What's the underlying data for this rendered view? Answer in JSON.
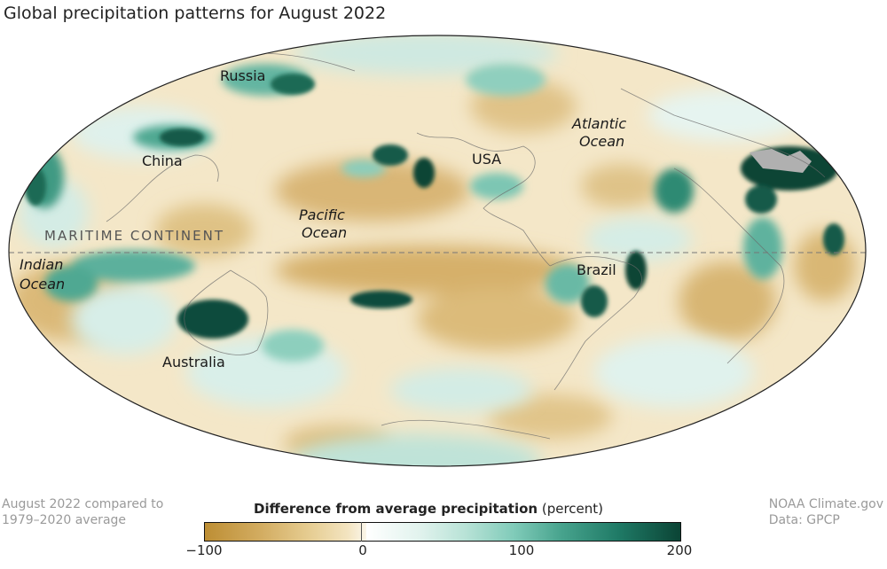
{
  "title": "Global precipitation patterns for August 2022",
  "map_labels": {
    "russia": "Russia",
    "china": "China",
    "maritime_continent": "MARITIME CONTINENT",
    "indian_ocean_1": "Indian",
    "indian_ocean_2": "Ocean",
    "australia": "Australia",
    "pacific_ocean_1": "Pacific",
    "pacific_ocean_2": "Ocean",
    "usa": "USA",
    "atlantic_ocean_1": "Atlantic",
    "atlantic_ocean_2": "Ocean",
    "brazil": "Brazil"
  },
  "footer": {
    "comparison_line1": "August 2022 compared to",
    "comparison_line2": "1979–2020 average",
    "credit_line1": "NOAA Climate.gov",
    "credit_line2": "Data: GPCP"
  },
  "legend": {
    "title_bold": "Difference from average precipitation",
    "title_unit": "(percent)",
    "ticks": [
      "−100",
      "0",
      "100",
      "200"
    ],
    "range": [
      -100,
      200
    ],
    "dry_color": "#bd8e34",
    "neutral_color": "#ffffff",
    "wet_color": "#0b4435"
  },
  "colors": {
    "wet_dark": "#0b4435",
    "wet_mid": "#47a38d",
    "wet_light": "#b7e2d6",
    "dry_mid": "#d3ad62",
    "dry_light": "#f0deb4",
    "missing": "#b0b0b0"
  }
}
